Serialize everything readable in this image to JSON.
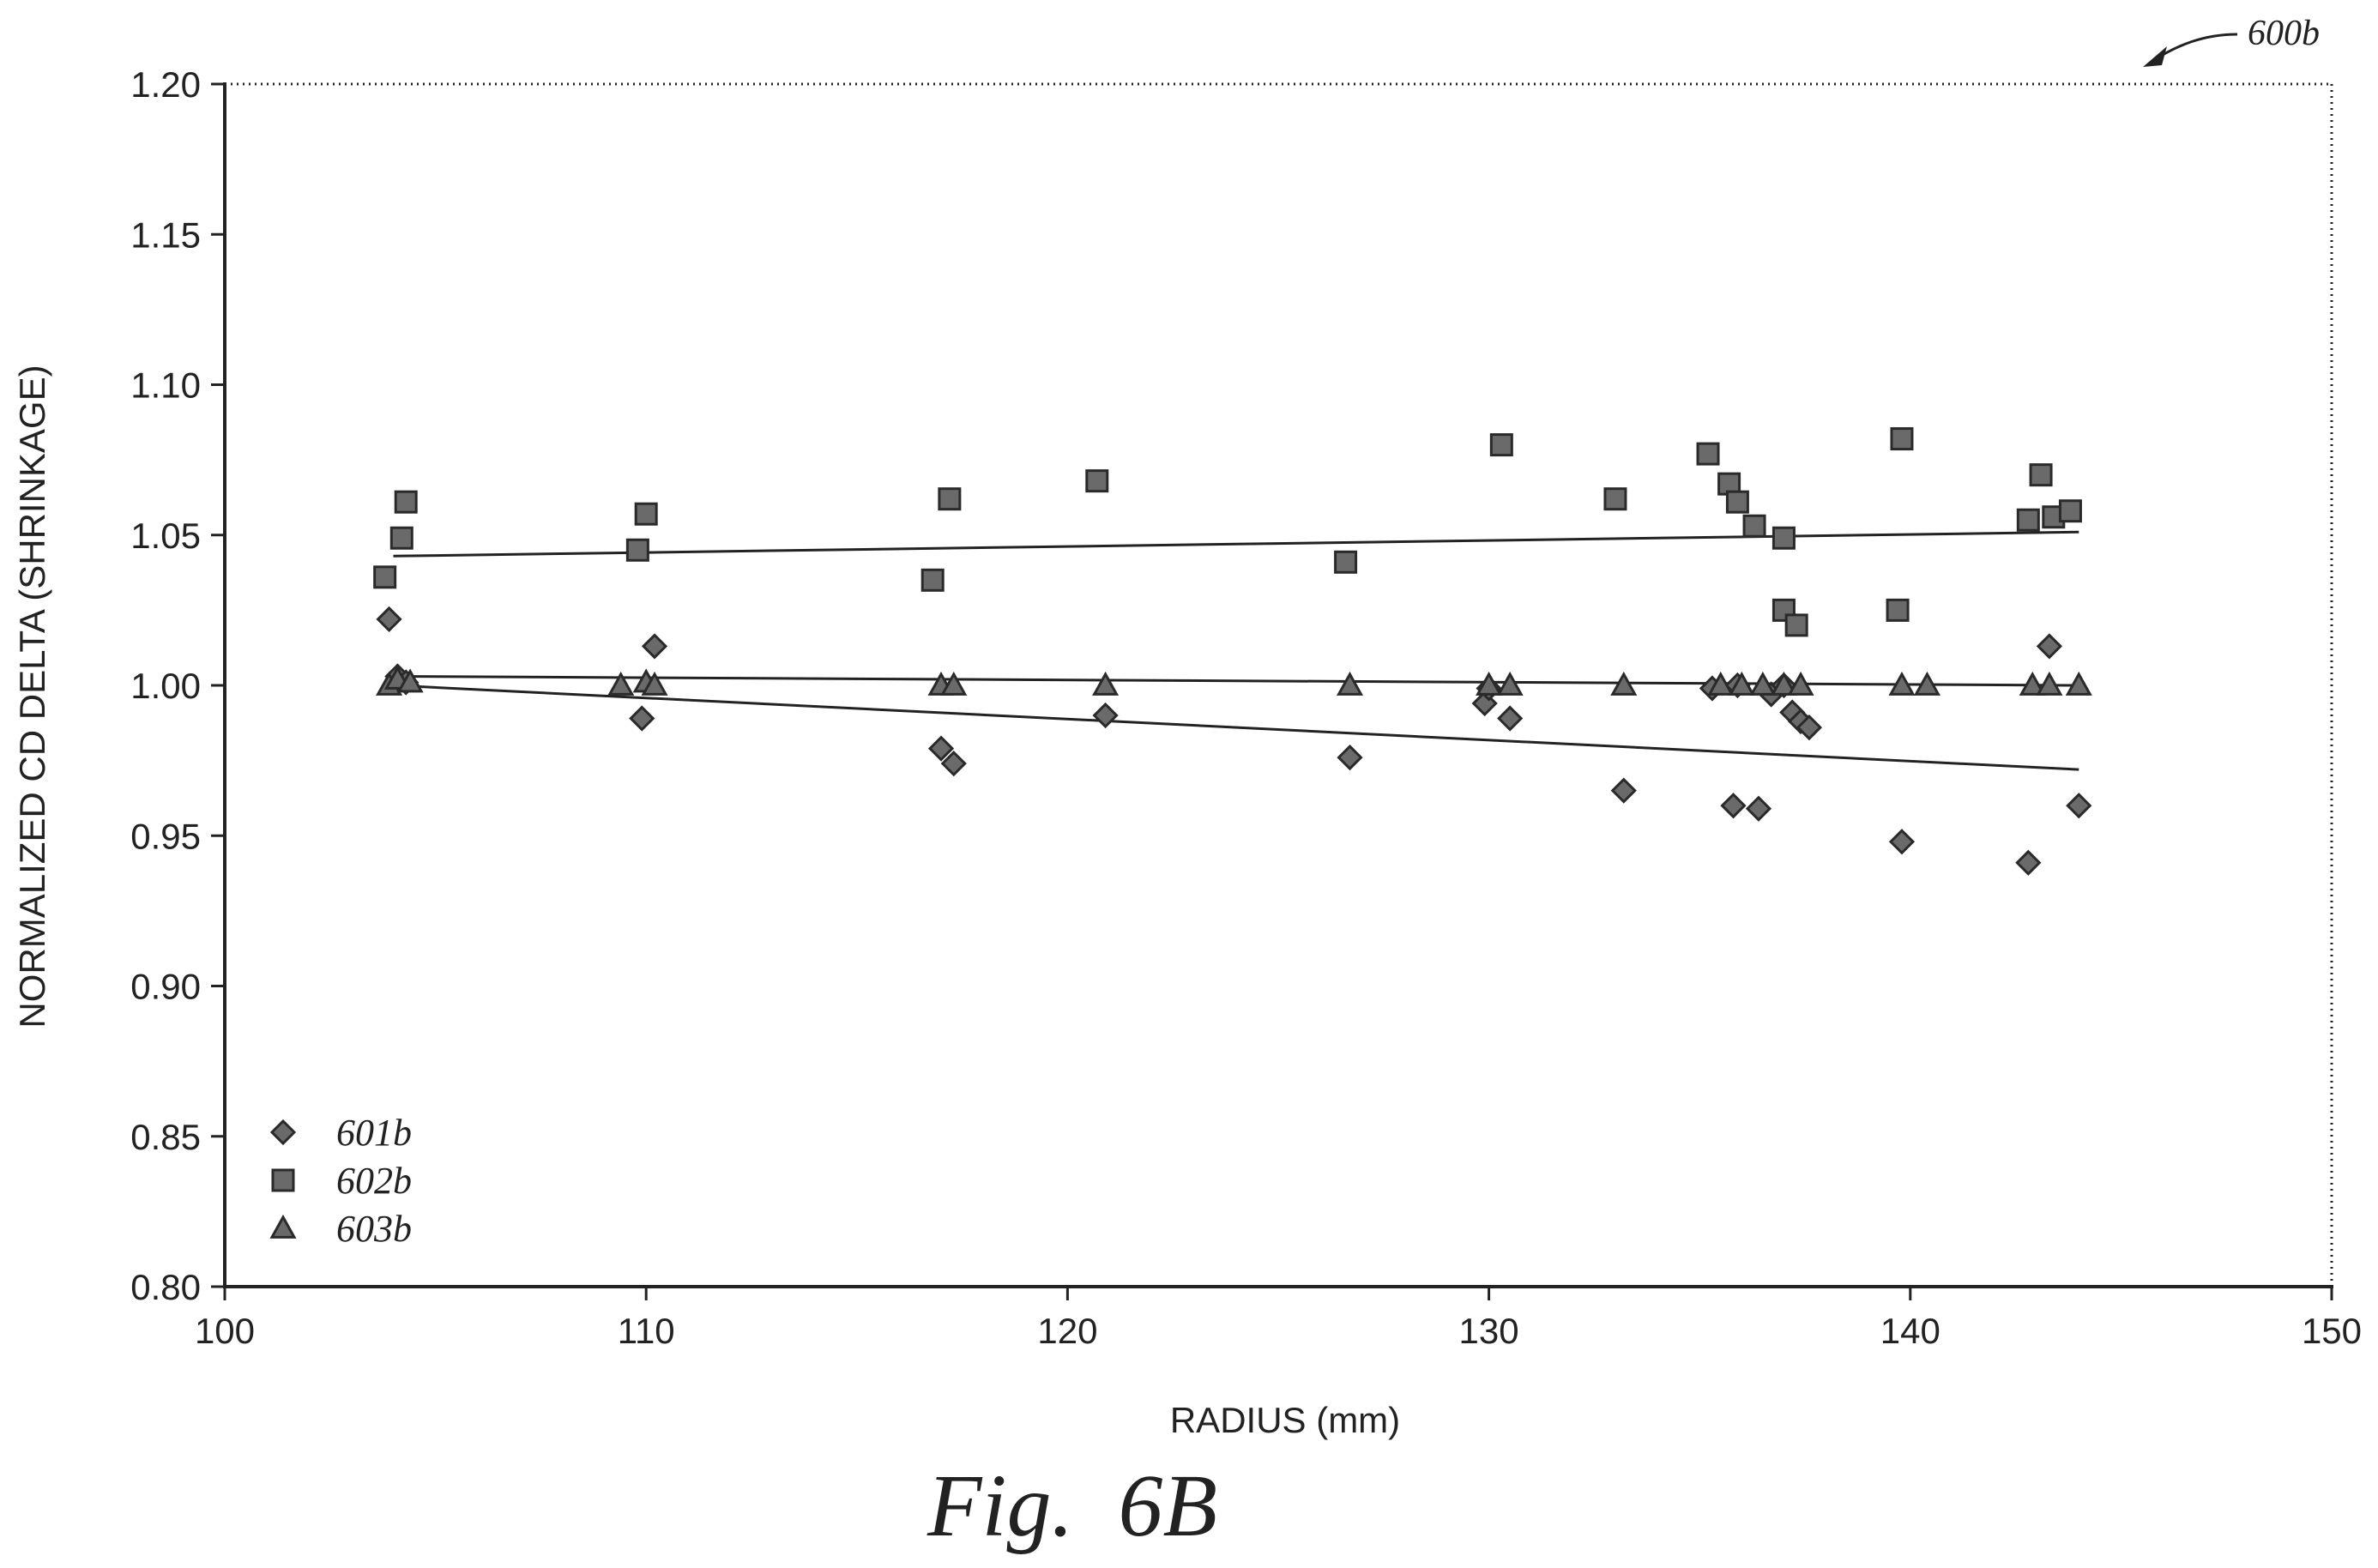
{
  "figure": {
    "reference_label": "600b",
    "caption": "Fig.  6B"
  },
  "colors": {
    "marker_fill": "#6a6a6a",
    "marker_stroke": "#2a2a2a",
    "axis": "#222222",
    "trendline": "#222222"
  },
  "chart_data": {
    "type": "scatter",
    "title": "",
    "xlabel": "RADIUS (mm)",
    "ylabel": "NORMALIZED CD DELTA (SHRINKAGE)",
    "xlim": [
      100,
      150
    ],
    "ylim": [
      0.8,
      1.2
    ],
    "x_ticks": [
      "100",
      "110",
      "120",
      "130",
      "140",
      "150"
    ],
    "y_ticks": [
      "0.80",
      "0.85",
      "0.90",
      "0.95",
      "1.00",
      "1.05",
      "1.10",
      "1.15",
      "1.20"
    ],
    "grid": false,
    "legend_position": "bottom-left",
    "series": [
      {
        "name": "601b",
        "marker": "diamond",
        "points": [
          [
            103.9,
            1.022
          ],
          [
            104.1,
            1.003
          ],
          [
            104.3,
            1.001
          ],
          [
            109.9,
            0.989
          ],
          [
            110.2,
            1.013
          ],
          [
            117.0,
            0.979
          ],
          [
            117.3,
            0.974
          ],
          [
            120.9,
            0.99
          ],
          [
            126.7,
            0.976
          ],
          [
            129.9,
            0.994
          ],
          [
            130.0,
            0.999
          ],
          [
            130.5,
            0.989
          ],
          [
            133.2,
            0.965
          ],
          [
            135.3,
            0.999
          ],
          [
            135.8,
            0.96
          ],
          [
            135.9,
            1.0
          ],
          [
            136.4,
            0.959
          ],
          [
            136.7,
            0.997
          ],
          [
            137.0,
            1.0
          ],
          [
            137.2,
            0.991
          ],
          [
            137.4,
            0.988
          ],
          [
            137.6,
            0.986
          ],
          [
            139.8,
            0.948
          ],
          [
            142.8,
            0.941
          ],
          [
            143.3,
            1.013
          ],
          [
            144.0,
            0.96
          ]
        ],
        "trendline": {
          "x": [
            104.0,
            144.0
          ],
          "y": [
            1.0,
            0.972
          ]
        }
      },
      {
        "name": "602b",
        "marker": "square",
        "points": [
          [
            103.8,
            1.036
          ],
          [
            104.2,
            1.049
          ],
          [
            104.3,
            1.061
          ],
          [
            109.8,
            1.045
          ],
          [
            110.0,
            1.057
          ],
          [
            116.8,
            1.035
          ],
          [
            117.2,
            1.062
          ],
          [
            120.7,
            1.068
          ],
          [
            126.6,
            1.041
          ],
          [
            130.3,
            1.08
          ],
          [
            133.0,
            1.062
          ],
          [
            135.2,
            1.077
          ],
          [
            135.7,
            1.067
          ],
          [
            135.9,
            1.061
          ],
          [
            136.3,
            1.053
          ],
          [
            137.0,
            1.049
          ],
          [
            137.0,
            1.025
          ],
          [
            137.3,
            1.02
          ],
          [
            139.7,
            1.025
          ],
          [
            139.8,
            1.082
          ],
          [
            142.8,
            1.055
          ],
          [
            143.1,
            1.07
          ],
          [
            143.4,
            1.056
          ],
          [
            143.8,
            1.058
          ]
        ],
        "trendline": {
          "x": [
            104.0,
            144.0
          ],
          "y": [
            1.043,
            1.051
          ]
        }
      },
      {
        "name": "603b",
        "marker": "triangle",
        "points": [
          [
            103.9,
            1.0
          ],
          [
            104.1,
            1.002
          ],
          [
            104.4,
            1.001
          ],
          [
            109.4,
            1.0
          ],
          [
            110.0,
            1.001
          ],
          [
            110.2,
            1.0
          ],
          [
            117.0,
            1.0
          ],
          [
            117.3,
            1.0
          ],
          [
            120.9,
            1.0
          ],
          [
            126.7,
            1.0
          ],
          [
            130.0,
            1.0
          ],
          [
            130.5,
            1.0
          ],
          [
            133.2,
            1.0
          ],
          [
            135.5,
            1.0
          ],
          [
            136.0,
            1.0
          ],
          [
            136.5,
            1.0
          ],
          [
            137.0,
            1.0
          ],
          [
            137.4,
            1.0
          ],
          [
            139.8,
            1.0
          ],
          [
            140.4,
            1.0
          ],
          [
            142.9,
            1.0
          ],
          [
            143.3,
            1.0
          ],
          [
            144.0,
            1.0
          ]
        ],
        "trendline": {
          "x": [
            104.0,
            144.0
          ],
          "y": [
            1.003,
            1.0
          ]
        }
      }
    ]
  }
}
